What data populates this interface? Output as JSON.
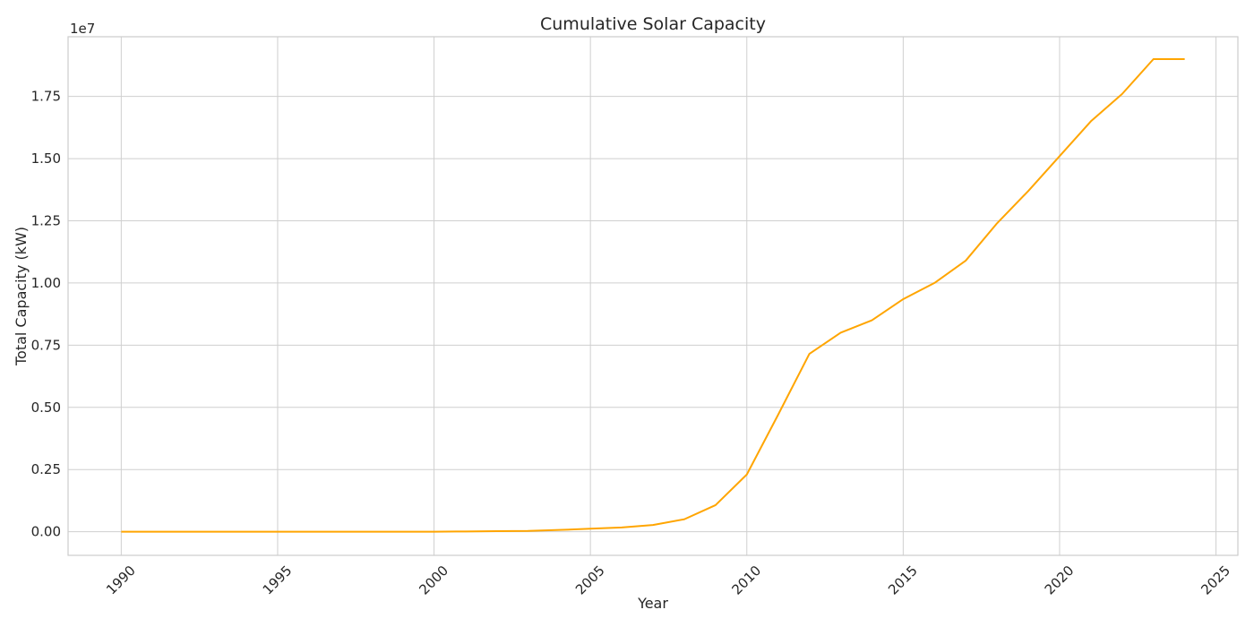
{
  "chart_data": {
    "type": "line",
    "title": "Cumulative Solar Capacity",
    "xlabel": "Year",
    "ylabel": "Total Capacity (kW)",
    "y_offset_text": "1e7",
    "y_scale": 10000000,
    "xlim": [
      1988.3,
      2025.7
    ],
    "ylim": [
      -0.095,
      1.99
    ],
    "grid": true,
    "line_color": "#FFA500",
    "grid_color": "#cfcfcf",
    "x_ticks": [
      1990,
      1995,
      2000,
      2005,
      2010,
      2015,
      2020,
      2025
    ],
    "x_tick_labels": [
      "1990",
      "1995",
      "2000",
      "2005",
      "2010",
      "2015",
      "2020",
      "2025"
    ],
    "y_ticks": [
      0,
      0.25,
      0.5,
      0.75,
      1.0,
      1.25,
      1.5,
      1.75
    ],
    "y_tick_labels": [
      "0.00",
      "0.25",
      "0.50",
      "0.75",
      "1.00",
      "1.25",
      "1.50",
      "1.75"
    ],
    "series": [
      {
        "name": "Total Capacity (kW)",
        "x": [
          1990,
          1991,
          1992,
          1993,
          1994,
          1995,
          1996,
          1997,
          1998,
          1999,
          2000,
          2001,
          2002,
          2003,
          2004,
          2005,
          2006,
          2007,
          2008,
          2009,
          2010,
          2011,
          2012,
          2013,
          2014,
          2015,
          2016,
          2017,
          2018,
          2019,
          2020,
          2021,
          2022,
          2023,
          2024
        ],
        "values": [
          0.0,
          0.0,
          0.0,
          0.0,
          0.0,
          0.0,
          0.0,
          0.0,
          0.0,
          0.0,
          0.0,
          0.001,
          0.002,
          0.003,
          0.007,
          0.012,
          0.017,
          0.027,
          0.05,
          0.107,
          0.23,
          0.47,
          0.715,
          0.8,
          0.85,
          0.935,
          1.0,
          1.09,
          1.24,
          1.37,
          1.51,
          1.65,
          1.76,
          1.9,
          1.9
        ]
      }
    ]
  }
}
